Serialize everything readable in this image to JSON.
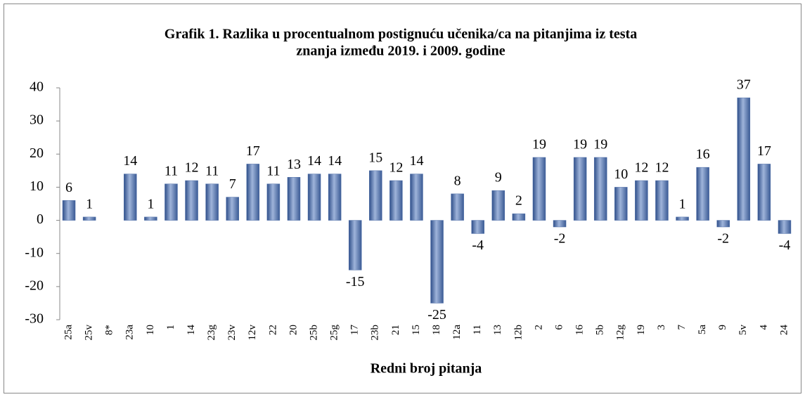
{
  "chart_data": {
    "type": "bar",
    "title": [
      "Grafik 1. Razlika u procentualnom postignuću učenika/ca na pitanjima iz testa",
      "znanja između 2019. i 2009. godine"
    ],
    "x_label": "Redni broj pitanja",
    "categories": [
      "25a",
      "25v",
      "8*",
      "23a",
      "10",
      "1",
      "14",
      "23g",
      "23v",
      "12v",
      "22",
      "20",
      "25b",
      "25g",
      "17",
      "23b",
      "21",
      "15",
      "18",
      "12a",
      "11",
      "13",
      "12b",
      "2",
      "6",
      "16",
      "5b",
      "12g",
      "19",
      "3",
      "7",
      "5a",
      "9",
      "5v",
      "4",
      "24"
    ],
    "values": [
      6,
      1,
      null,
      14,
      1,
      11,
      12,
      11,
      7,
      17,
      11,
      13,
      14,
      14,
      -15,
      15,
      12,
      14,
      -25,
      8,
      -4,
      9,
      2,
      19,
      -2,
      19,
      19,
      10,
      12,
      12,
      1,
      16,
      -2,
      37,
      17,
      -4
    ],
    "color": "#4f6fa8",
    "ylim": [
      -30,
      40
    ],
    "yticks": [
      -30,
      -20,
      -10,
      0,
      10,
      20,
      30,
      40
    ]
  }
}
